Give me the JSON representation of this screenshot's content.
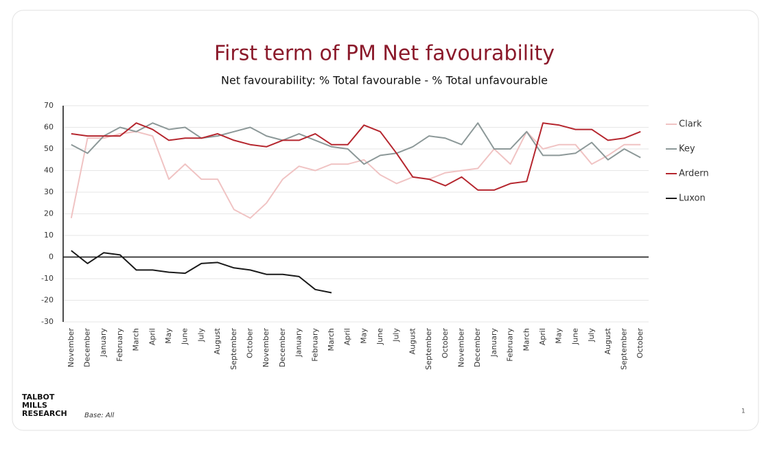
{
  "chart_data": {
    "type": "line",
    "title": "First term of PM Net favourability",
    "subtitle": "Net favourability: % Total favourable - % Total unfavourable",
    "categories": [
      "November",
      "December",
      "January",
      "February",
      "March",
      "April",
      "May",
      "June",
      "July",
      "August",
      "September",
      "October",
      "November",
      "December",
      "January",
      "February",
      "March",
      "April",
      "May",
      "June",
      "July",
      "August",
      "September",
      "October",
      "November",
      "December",
      "January",
      "February",
      "March",
      "April",
      "May",
      "June",
      "July",
      "August",
      "September",
      "October"
    ],
    "series": [
      {
        "name": "Clark",
        "color": "#f0c3c3",
        "values": [
          18,
          55,
          55,
          57,
          58,
          56,
          36,
          43,
          36,
          36,
          22,
          18,
          25,
          36,
          42,
          40,
          43,
          43,
          45,
          38,
          34,
          37,
          36,
          39,
          40,
          41,
          50,
          43,
          58,
          50,
          52,
          52,
          43,
          47,
          52,
          52
        ]
      },
      {
        "name": "Key",
        "color": "#8c9898",
        "values": [
          52,
          48,
          56,
          60,
          58,
          62,
          59,
          60,
          55,
          56,
          58,
          60,
          56,
          54,
          57,
          54,
          51,
          50,
          43,
          47,
          48,
          51,
          56,
          55,
          52,
          62,
          50,
          50,
          58,
          47,
          47,
          48,
          53,
          45,
          50,
          46
        ]
      },
      {
        "name": "Ardern",
        "color": "#b5262e",
        "values": [
          57,
          56,
          56,
          56,
          62,
          59,
          54,
          55,
          55,
          57,
          54,
          52,
          51,
          54,
          54,
          57,
          52,
          52,
          61,
          58,
          48,
          37,
          36,
          33,
          37,
          31,
          31,
          34,
          35,
          62,
          61,
          59,
          59,
          54,
          55,
          58
        ]
      },
      {
        "name": "Luxon",
        "color": "#1a1a1a",
        "values": [
          3,
          -3,
          2,
          1,
          -6,
          -6,
          -7,
          -7.5,
          -3,
          -2.5,
          -5,
          -6,
          -8,
          -8,
          -9,
          -15,
          -16.5,
          null,
          null,
          null,
          null,
          null,
          null,
          null,
          null,
          null,
          null,
          null,
          null,
          null,
          null,
          null,
          null,
          null,
          null,
          null
        ]
      }
    ],
    "ylim": [
      -30,
      70
    ],
    "yticks": [
      -30,
      -20,
      -10,
      0,
      10,
      20,
      30,
      40,
      50,
      60,
      70
    ],
    "grid": true,
    "legend": "right"
  },
  "footer": {
    "logo": [
      "TALBOT",
      "MILLS",
      "RESEARCH"
    ],
    "base": "Base: All",
    "page": "1"
  }
}
